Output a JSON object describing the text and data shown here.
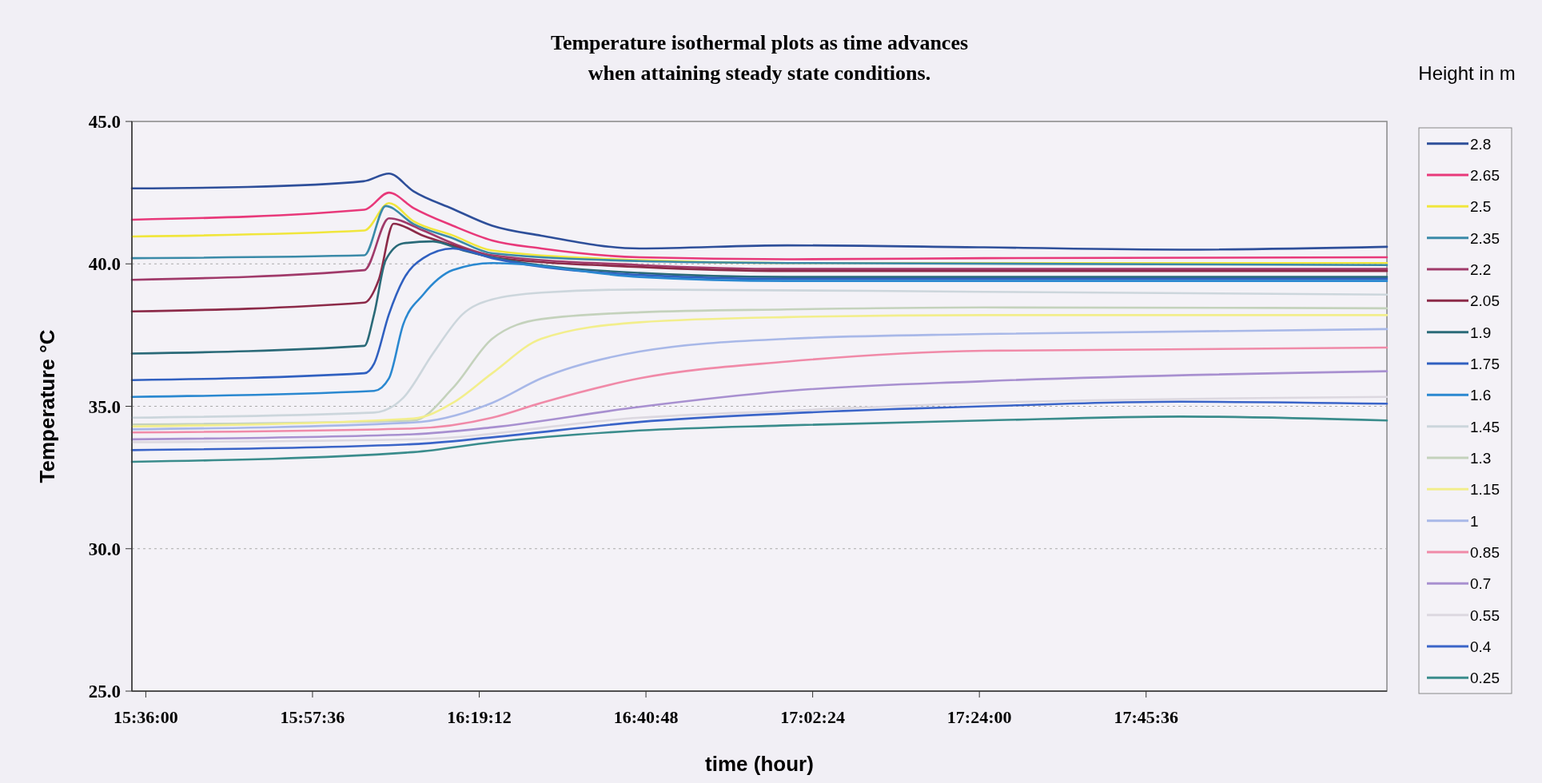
{
  "chart_data": {
    "type": "line",
    "title": "Temperature isothermal plots as time advances\nwhen attaining steady state conditions.",
    "xlabel": "time (hour)",
    "ylabel": "Temperature °C",
    "legend_title": "Height in m",
    "legend": "right",
    "grid": "y",
    "line_style": "solid",
    "xlim": [
      15.57,
      18.28
    ],
    "xticks": [
      {
        "value": 15.6,
        "label": "15:36:00"
      },
      {
        "value": 15.96,
        "label": "15:57:36"
      },
      {
        "value": 16.32,
        "label": "16:19:12"
      },
      {
        "value": 16.68,
        "label": "16:40:48"
      },
      {
        "value": 17.04,
        "label": "17:02:24"
      },
      {
        "value": 17.4,
        "label": "17:24:00"
      },
      {
        "value": 17.76,
        "label": "17:45:36"
      }
    ],
    "ylim": [
      25,
      45
    ],
    "yticks": [
      {
        "value": 25,
        "label": "25.0"
      },
      {
        "value": 30,
        "label": "30.0"
      },
      {
        "value": 35,
        "label": "35.0"
      },
      {
        "value": 40,
        "label": "40.0"
      },
      {
        "value": 45,
        "label": "45.0"
      }
    ],
    "series": [
      {
        "name": "2.8",
        "color": "#2e4f9a",
        "x": [
          15.57,
          15.82,
          16.07,
          16.125,
          16.178,
          16.263,
          16.348,
          16.454,
          16.666,
          16.985,
          17.41,
          17.834,
          18.28
        ],
        "values": [
          42.65,
          42.7,
          42.9,
          43.17,
          42.55,
          41.93,
          41.34,
          40.99,
          40.54,
          40.65,
          40.58,
          40.5,
          40.6
        ]
      },
      {
        "name": "2.65",
        "color": "#e8397a",
        "x": [
          15.57,
          16.072,
          16.125,
          16.178,
          16.263,
          16.348,
          16.454,
          16.666,
          16.985,
          17.41,
          18.28
        ],
        "values": [
          41.55,
          41.9,
          42.5,
          41.96,
          41.34,
          40.82,
          40.54,
          40.23,
          40.16,
          40.2,
          40.23
        ]
      },
      {
        "name": "2.5",
        "color": "#f0e63c",
        "x": [
          15.57,
          16.072,
          16.125,
          16.178,
          16.263,
          16.348,
          16.666,
          16.985,
          18.28
        ],
        "values": [
          40.96,
          41.17,
          42.13,
          41.5,
          41.0,
          40.47,
          40.13,
          40.03,
          40.03
        ]
      },
      {
        "name": "2.35",
        "color": "#3a8aa8",
        "x": [
          15.57,
          16.072,
          16.118,
          16.178,
          16.263,
          16.348,
          16.666,
          16.985,
          18.28
        ],
        "values": [
          40.2,
          40.3,
          42.03,
          41.4,
          40.9,
          40.37,
          40.1,
          40.03,
          39.96
        ]
      },
      {
        "name": "2.2",
        "color": "#a03a6a",
        "x": [
          15.57,
          16.072,
          16.125,
          16.199,
          16.263,
          16.348,
          16.666,
          16.985,
          18.28
        ],
        "values": [
          39.44,
          39.78,
          41.6,
          41.17,
          40.72,
          40.3,
          39.96,
          39.82,
          39.82
        ]
      },
      {
        "name": "2.05",
        "color": "#8c2a48",
        "x": [
          15.57,
          16.072,
          16.103,
          16.135,
          16.199,
          16.263,
          16.348,
          16.666,
          16.985,
          18.28
        ],
        "values": [
          38.33,
          38.64,
          39.44,
          41.41,
          40.99,
          40.65,
          40.23,
          39.89,
          39.75,
          39.75
        ]
      },
      {
        "name": "1.9",
        "color": "#2a6a78",
        "x": [
          15.57,
          16.072,
          16.093,
          16.118,
          16.156,
          16.22,
          16.284,
          16.348,
          16.666,
          16.985,
          18.28
        ],
        "values": [
          36.85,
          37.12,
          38.23,
          40.13,
          40.72,
          40.79,
          40.48,
          40.23,
          39.68,
          39.54,
          39.54
        ]
      },
      {
        "name": "1.75",
        "color": "#3060c0",
        "x": [
          15.57,
          16.072,
          16.093,
          16.125,
          16.156,
          16.199,
          16.263,
          16.348,
          16.666,
          16.985,
          18.28
        ],
        "values": [
          35.92,
          36.16,
          36.5,
          38.23,
          39.44,
          40.2,
          40.54,
          40.2,
          39.61,
          39.47,
          39.47
        ]
      },
      {
        "name": "1.6",
        "color": "#2a88d0",
        "x": [
          15.57,
          16.093,
          16.125,
          16.156,
          16.199,
          16.263,
          16.348,
          16.666,
          16.985,
          18.28
        ],
        "values": [
          35.33,
          35.54,
          35.98,
          37.88,
          38.92,
          39.78,
          40.03,
          39.54,
          39.4,
          39.4
        ]
      },
      {
        "name": "1.45",
        "color": "#ccd6dc",
        "x": [
          15.57,
          16.093,
          16.156,
          16.22,
          16.284,
          16.348,
          16.454,
          16.666,
          17.41,
          18.28
        ],
        "values": [
          34.6,
          34.78,
          35.3,
          36.85,
          38.23,
          38.75,
          38.99,
          39.1,
          39.02,
          38.92
        ]
      },
      {
        "name": "1.3",
        "color": "#c4d2bc",
        "x": [
          15.57,
          16.178,
          16.263,
          16.348,
          16.454,
          16.666,
          16.985,
          17.41,
          18.28
        ],
        "values": [
          34.36,
          34.5,
          35.64,
          37.37,
          38.06,
          38.3,
          38.4,
          38.47,
          38.44
        ]
      },
      {
        "name": "1.15",
        "color": "#f2ee8c",
        "x": [
          15.57,
          16.178,
          16.263,
          16.348,
          16.454,
          16.666,
          16.985,
          17.41,
          18.28
        ],
        "values": [
          34.29,
          34.57,
          35.12,
          36.16,
          37.37,
          37.95,
          38.13,
          38.2,
          38.2
        ]
      },
      {
        "name": "1",
        "color": "#a8b8e8",
        "x": [
          15.57,
          16.178,
          16.348,
          16.454,
          16.666,
          16.985,
          17.41,
          18.28
        ],
        "values": [
          34.19,
          34.43,
          35.12,
          35.98,
          36.92,
          37.37,
          37.54,
          37.71
        ]
      },
      {
        "name": "0.85",
        "color": "#f08aa8",
        "x": [
          15.57,
          16.178,
          16.348,
          16.454,
          16.666,
          16.985,
          17.41,
          18.28
        ],
        "values": [
          34.08,
          34.22,
          34.6,
          35.12,
          35.98,
          36.57,
          36.95,
          37.06
        ]
      },
      {
        "name": "0.7",
        "color": "#a890d0",
        "x": [
          15.57,
          16.178,
          16.348,
          16.666,
          16.985,
          17.41,
          18.28
        ],
        "values": [
          33.84,
          34.02,
          34.26,
          34.98,
          35.54,
          35.88,
          36.23
        ]
      },
      {
        "name": "0.55",
        "color": "#dcd8e0",
        "x": [
          15.57,
          16.178,
          16.666,
          16.985,
          17.41,
          18.28
        ],
        "values": [
          33.74,
          33.84,
          34.6,
          34.84,
          35.12,
          35.33
        ]
      },
      {
        "name": "0.4",
        "color": "#3a64c8",
        "x": [
          15.57,
          16.178,
          16.348,
          16.666,
          16.985,
          17.41,
          17.834,
          18.28
        ],
        "values": [
          33.46,
          33.67,
          33.91,
          34.45,
          34.75,
          35.0,
          35.16,
          35.09
        ]
      },
      {
        "name": "0.25",
        "color": "#3a8c8c",
        "x": [
          15.57,
          16.178,
          16.348,
          16.666,
          16.985,
          17.41,
          17.834,
          18.28
        ],
        "values": [
          33.05,
          33.39,
          33.74,
          34.15,
          34.33,
          34.5,
          34.64,
          34.5
        ]
      }
    ]
  }
}
